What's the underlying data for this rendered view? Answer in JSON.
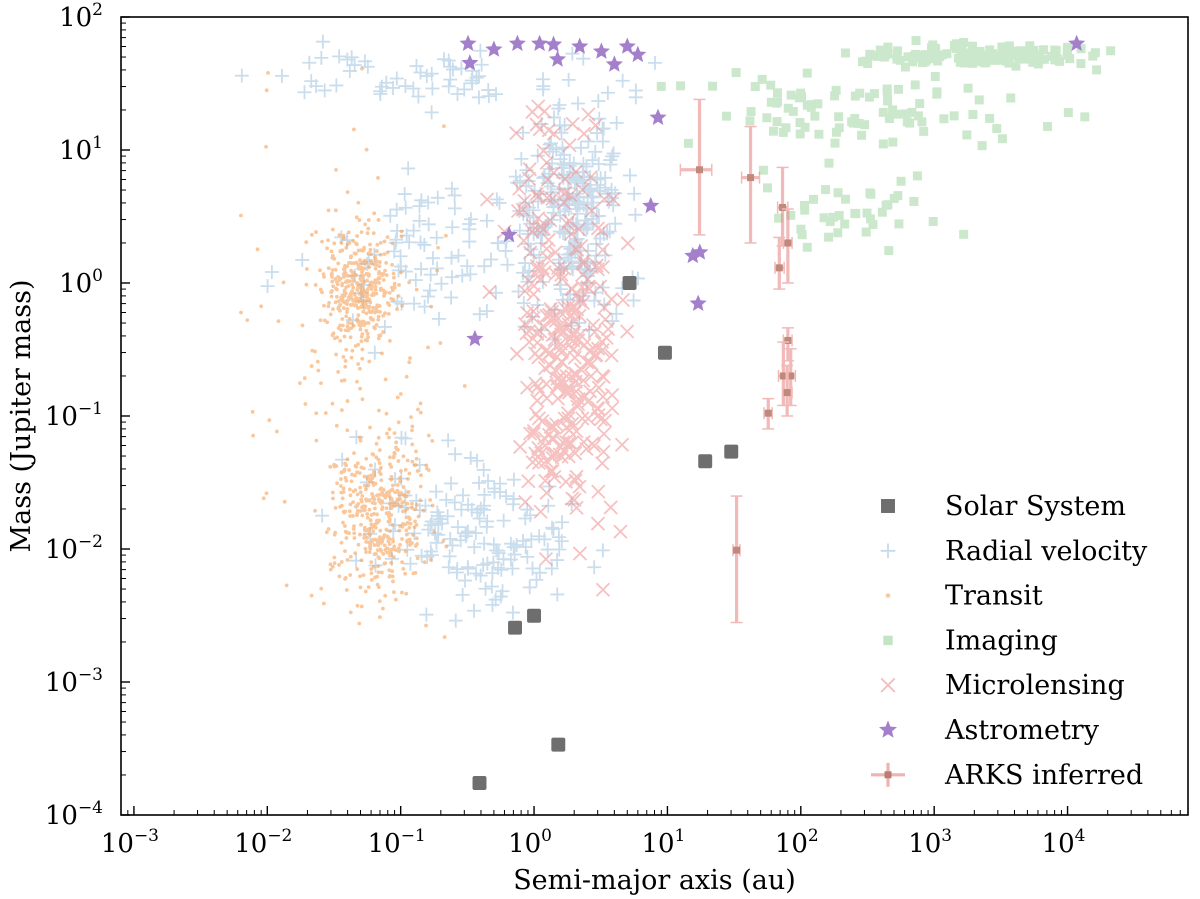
{
  "chart_data": {
    "type": "scatter",
    "title": "",
    "xlabel": "Semi-major axis (au)",
    "ylabel": "Mass (Jupiter mass)",
    "xscale": "log",
    "yscale": "log",
    "xlim": [
      0.0008,
      80000
    ],
    "ylim": [
      0.0001,
      100
    ],
    "x_ticks": [
      {
        "base": "10",
        "exp": "−3",
        "value": 0.001
      },
      {
        "base": "10",
        "exp": "−2",
        "value": 0.01
      },
      {
        "base": "10",
        "exp": "−1",
        "value": 0.1
      },
      {
        "base": "10",
        "exp": "0",
        "value": 1
      },
      {
        "base": "10",
        "exp": "1",
        "value": 10
      },
      {
        "base": "10",
        "exp": "2",
        "value": 100
      },
      {
        "base": "10",
        "exp": "3",
        "value": 1000
      },
      {
        "base": "10",
        "exp": "4",
        "value": 10000
      }
    ],
    "y_ticks": [
      {
        "base": "10",
        "exp": "−4",
        "value": 0.0001
      },
      {
        "base": "10",
        "exp": "−3",
        "value": 0.001
      },
      {
        "base": "10",
        "exp": "−2",
        "value": 0.01
      },
      {
        "base": "10",
        "exp": "−1",
        "value": 0.1
      },
      {
        "base": "10",
        "exp": "0",
        "value": 1
      },
      {
        "base": "10",
        "exp": "1",
        "value": 10
      },
      {
        "base": "10",
        "exp": "2",
        "value": 100
      }
    ],
    "legend_position": "lower-right",
    "series": [
      {
        "name": "Solar System",
        "marker": "square",
        "color": "#6b6b6b",
        "points": [
          [
            0.39,
            0.000174
          ],
          [
            0.72,
            0.00256
          ],
          [
            1.0,
            0.00315
          ],
          [
            1.52,
            0.000338
          ],
          [
            5.2,
            1.0
          ],
          [
            9.58,
            0.299
          ],
          [
            19.2,
            0.0457
          ],
          [
            30.1,
            0.054
          ]
        ]
      },
      {
        "name": "Radial velocity",
        "marker": "plus",
        "color": "#9ec2e0",
        "clusters": [
          {
            "n": 150,
            "logx": [
              -1.6,
              0.6
            ],
            "logy": [
              -2.6,
              -1.0
            ],
            "points_note": "low-mass RV planets"
          },
          {
            "n": 240,
            "logx": [
              -0.3,
              0.9
            ],
            "logy": [
              -0.5,
              1.5
            ],
            "points_note": "giant planets"
          },
          {
            "n": 90,
            "logx": [
              -2.0,
              0.5
            ],
            "logy": [
              -0.6,
              1.0
            ]
          },
          {
            "n": 60,
            "logx": [
              -2.6,
              1.1
            ],
            "logy": [
              1.3,
              1.8
            ]
          }
        ]
      },
      {
        "name": "Transit",
        "marker": "dot",
        "color": "#f7a35c",
        "clusters": [
          {
            "n": 380,
            "logx": [
              -1.65,
              -0.95
            ],
            "logy": [
              -0.6,
              0.5
            ]
          },
          {
            "n": 420,
            "logx": [
              -1.6,
              -0.7
            ],
            "logy": [
              -2.5,
              -1.0
            ]
          },
          {
            "n": 140,
            "logx": [
              -2.4,
              -0.3
            ],
            "logy": [
              -3.0,
              1.6
            ]
          }
        ]
      },
      {
        "name": "Imaging",
        "marker": "square",
        "color": "#9bd39b",
        "clusters": [
          {
            "n": 130,
            "logx": [
              2.0,
              4.6
            ],
            "logy": [
              1.6,
              1.82
            ]
          },
          {
            "n": 90,
            "logx": [
              0.6,
              4.4
            ],
            "logy": [
              0.9,
              1.7
            ]
          },
          {
            "n": 40,
            "logx": [
              1.5,
              3.2
            ],
            "logy": [
              0.1,
              1.0
            ]
          }
        ]
      },
      {
        "name": "Microlensing",
        "marker": "x",
        "color": "#ee8f8f",
        "clusters": [
          {
            "n": 260,
            "logx": [
              -0.25,
              0.75
            ],
            "logy": [
              -2.3,
              1.3
            ]
          },
          {
            "n": 40,
            "logx": [
              -0.6,
              1.0
            ],
            "logy": [
              -0.4,
              1.6
            ]
          }
        ]
      },
      {
        "name": "Astrometry",
        "marker": "star",
        "color": "#a47fcb",
        "points": [
          [
            0.32,
            63
          ],
          [
            0.33,
            45
          ],
          [
            0.5,
            57
          ],
          [
            0.75,
            63
          ],
          [
            1.1,
            63
          ],
          [
            1.4,
            62
          ],
          [
            1.5,
            48
          ],
          [
            2.2,
            60
          ],
          [
            3.2,
            55
          ],
          [
            4.0,
            44
          ],
          [
            5.0,
            60
          ],
          [
            6.0,
            52
          ],
          [
            7.5,
            3.8
          ],
          [
            8.5,
            17.5
          ],
          [
            15.5,
            1.6
          ],
          [
            17.5,
            1.7
          ],
          [
            17.0,
            0.7
          ],
          [
            0.36,
            0.38
          ],
          [
            0.65,
            2.3
          ],
          [
            11700,
            63
          ]
        ]
      },
      {
        "name": "ARKS inferred",
        "marker": "errorbar",
        "color": "#e06666",
        "points": [
          {
            "x": 17.4,
            "y": 7.1,
            "xlo": 12.5,
            "xhi": 21.5,
            "ylo": 2.3,
            "yhi": 24
          },
          {
            "x": 42,
            "y": 6.2,
            "xlo": 36,
            "xhi": 49,
            "ylo": 2.0,
            "yhi": 15
          },
          {
            "x": 73,
            "y": 3.7,
            "xlo": 67,
            "xhi": 80,
            "ylo": 1.9,
            "yhi": 7.4
          },
          {
            "x": 80,
            "y": 2.0,
            "xlo": 74,
            "xhi": 86,
            "ylo": 1.0,
            "yhi": 3.6
          },
          {
            "x": 69,
            "y": 1.3,
            "xlo": 64,
            "xhi": 75,
            "ylo": 0.9,
            "yhi": 2.2
          },
          {
            "x": 80,
            "y": 0.37,
            "xlo": 74,
            "xhi": 86,
            "ylo": 0.26,
            "yhi": 0.46
          },
          {
            "x": 74,
            "y": 0.2,
            "xlo": 68,
            "xhi": 80,
            "ylo": 0.12,
            "yhi": 0.36
          },
          {
            "x": 84,
            "y": 0.2,
            "xlo": 78,
            "xhi": 91,
            "ylo": 0.12,
            "yhi": 0.32
          },
          {
            "x": 79,
            "y": 0.15,
            "xlo": 73,
            "xhi": 86,
            "ylo": 0.1,
            "yhi": 0.24
          },
          {
            "x": 57,
            "y": 0.105,
            "xlo": 53,
            "xhi": 61,
            "ylo": 0.08,
            "yhi": 0.135
          },
          {
            "x": 33,
            "y": 0.0098,
            "xlo": 31,
            "xhi": 35,
            "ylo": 0.0028,
            "yhi": 0.025
          }
        ]
      }
    ]
  }
}
